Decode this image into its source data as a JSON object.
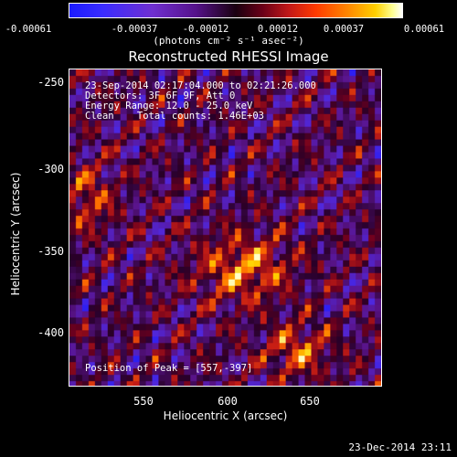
{
  "colorbar": {
    "ticks": [
      "-0.00061",
      "-0.00037",
      "-0.00012",
      "0.00012",
      "0.00037",
      "0.00061"
    ],
    "units": "(photons cm⁻² s⁻¹ asec⁻²)"
  },
  "title": "Reconstructed RHESSI Image",
  "info": {
    "line1": "23-Sep-2014 02:17:04.000 to 02:21:26.000",
    "line2": "Detectors: 3F 6F 9F, Att 0",
    "line3": "Energy Range: 12.0 - 25.0 keV",
    "line4": "Clean    Total counts: 1.46E+03",
    "peak": "Position of Peak = [557,-397]"
  },
  "axes": {
    "xlabel": "Heliocentric X (arcsec)",
    "ylabel": "Heliocentric Y (arcsec)",
    "xticks": [
      "550",
      "600",
      "650"
    ],
    "yticks": [
      "-250",
      "-300",
      "-350",
      "-400"
    ]
  },
  "timestamp": "23-Dec-2014 23:11",
  "colors": {
    "background": "#000000",
    "plot_bg": "#2a0050"
  }
}
